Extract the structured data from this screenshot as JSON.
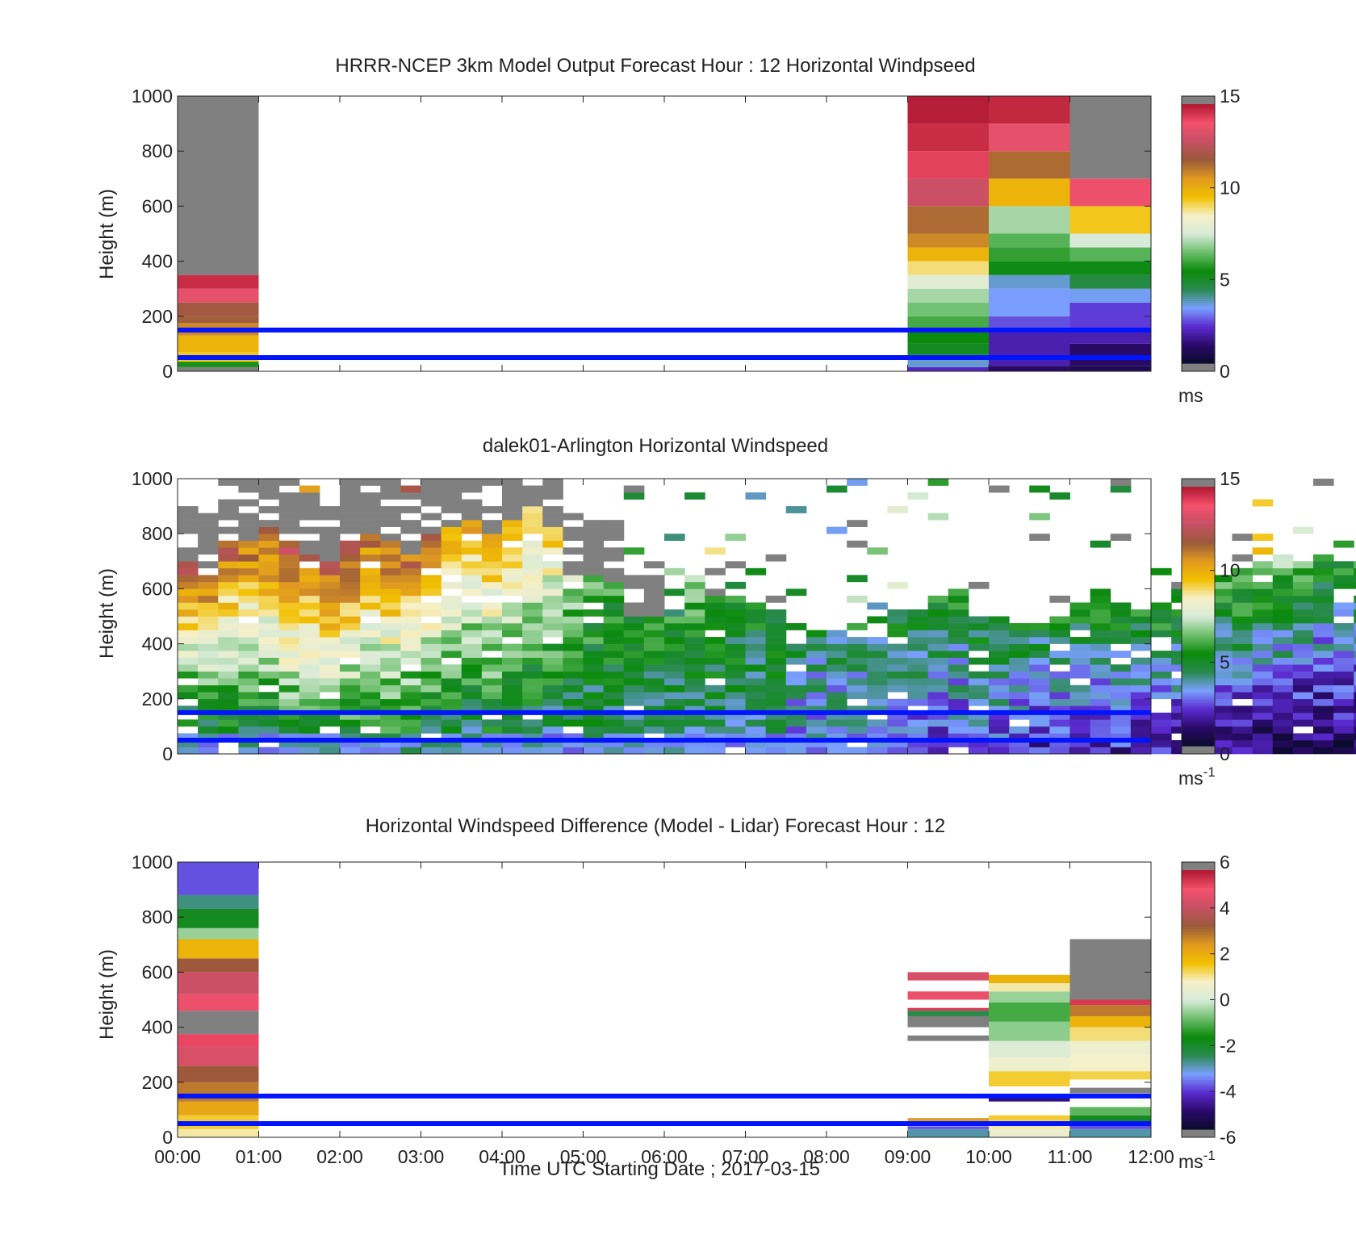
{
  "colors": {
    "background": "#ffffff",
    "axis": "#222222",
    "no_data_gray": "#808080",
    "reference_line": "#0014ff",
    "colormap": [
      "#808080",
      "#0a0a2a",
      "#2a0a6a",
      "#5a2ad0",
      "#7aa0ff",
      "#2a8a50",
      "#0a8a0a",
      "#6cbe6c",
      "#d8ebd8",
      "#f6f0c8",
      "#f2c000",
      "#e09a20",
      "#9a5a3a",
      "#c65064",
      "#f4506c",
      "#b01830",
      "#808080"
    ]
  },
  "chart_data": [
    {
      "type": "heatmap",
      "title": "HRRR-NCEP 3km Model Output   Forecast Hour : 12 Horizontal Windpseed",
      "xlabel": "",
      "ylabel": "Height (m)",
      "xlim": [
        0,
        12
      ],
      "ylim": [
        0,
        1000
      ],
      "yticks": [
        "0",
        "200",
        "400",
        "600",
        "800",
        "1000"
      ],
      "xticks": [
        "",
        "",
        "",
        "",
        "",
        "",
        "",
        "",
        "",
        "",
        "",
        "",
        ""
      ],
      "colorbar": {
        "ticks": [
          "0",
          "5",
          "10",
          "15"
        ],
        "range": [
          0,
          15
        ],
        "unit": "ms",
        "unit_superscript": ""
      },
      "reference_lines_m": [
        50,
        150
      ],
      "columns": [
        {
          "x_start": 0,
          "x_end": 1,
          "cells": [
            {
              "y0": 0,
              "y1": 15,
              "v": null
            },
            {
              "y0": 15,
              "y1": 35,
              "v": 5.5
            },
            {
              "y0": 35,
              "y1": 70,
              "v": 9.5
            },
            {
              "y0": 70,
              "y1": 130,
              "v": 10
            },
            {
              "y0": 130,
              "y1": 175,
              "v": 11
            },
            {
              "y0": 175,
              "y1": 200,
              "v": 11.7
            },
            {
              "y0": 200,
              "y1": 250,
              "v": 12
            },
            {
              "y0": 250,
              "y1": 300,
              "v": 13.6
            },
            {
              "y0": 300,
              "y1": 350,
              "v": 14.6
            },
            {
              "y0": 350,
              "y1": 1000,
              "v": null
            }
          ]
        },
        {
          "x_start": 9,
          "x_end": 10,
          "cells": [
            {
              "y0": 0,
              "y1": 15,
              "v": 2
            },
            {
              "y0": 15,
              "y1": 40,
              "v": 3.5
            },
            {
              "y0": 40,
              "y1": 60,
              "v": 4
            },
            {
              "y0": 60,
              "y1": 100,
              "v": 5
            },
            {
              "y0": 100,
              "y1": 150,
              "v": 5.3
            },
            {
              "y0": 150,
              "y1": 200,
              "v": 6
            },
            {
              "y0": 200,
              "y1": 250,
              "v": 6.5
            },
            {
              "y0": 250,
              "y1": 300,
              "v": 7
            },
            {
              "y0": 300,
              "y1": 350,
              "v": 7.8
            },
            {
              "y0": 350,
              "y1": 400,
              "v": 9
            },
            {
              "y0": 400,
              "y1": 450,
              "v": 10
            },
            {
              "y0": 450,
              "y1": 500,
              "v": 11
            },
            {
              "y0": 500,
              "y1": 600,
              "v": 11.5
            },
            {
              "y0": 600,
              "y1": 700,
              "v": 13
            },
            {
              "y0": 700,
              "y1": 800,
              "v": 14.2
            },
            {
              "y0": 800,
              "y1": 900,
              "v": 14.6
            },
            {
              "y0": 900,
              "y1": 1000,
              "v": 14.9
            }
          ]
        },
        {
          "x_start": 10,
          "x_end": 11,
          "cells": [
            {
              "y0": 0,
              "y1": 20,
              "v": 1
            },
            {
              "y0": 20,
              "y1": 150,
              "v": 1.8
            },
            {
              "y0": 150,
              "y1": 200,
              "v": 2.5
            },
            {
              "y0": 200,
              "y1": 300,
              "v": 3.2
            },
            {
              "y0": 300,
              "y1": 350,
              "v": 3.5
            },
            {
              "y0": 350,
              "y1": 400,
              "v": 5.2
            },
            {
              "y0": 400,
              "y1": 450,
              "v": 5.8
            },
            {
              "y0": 450,
              "y1": 500,
              "v": 6.2
            },
            {
              "y0": 500,
              "y1": 600,
              "v": 7
            },
            {
              "y0": 600,
              "y1": 700,
              "v": 10
            },
            {
              "y0": 700,
              "y1": 800,
              "v": 11.5
            },
            {
              "y0": 800,
              "y1": 900,
              "v": 13.6
            },
            {
              "y0": 900,
              "y1": 1000,
              "v": 14.7
            }
          ]
        },
        {
          "x_start": 11,
          "x_end": 12,
          "cells": [
            {
              "y0": 0,
              "y1": 20,
              "v": 0.7
            },
            {
              "y0": 20,
              "y1": 100,
              "v": 1
            },
            {
              "y0": 100,
              "y1": 150,
              "v": 1.8
            },
            {
              "y0": 150,
              "y1": 250,
              "v": 2.3
            },
            {
              "y0": 250,
              "y1": 300,
              "v": 3.3
            },
            {
              "y0": 300,
              "y1": 350,
              "v": 4.5
            },
            {
              "y0": 350,
              "y1": 400,
              "v": 5.2
            },
            {
              "y0": 400,
              "y1": 450,
              "v": 6.2
            },
            {
              "y0": 450,
              "y1": 500,
              "v": 7.5
            },
            {
              "y0": 500,
              "y1": 600,
              "v": 9.5
            },
            {
              "y0": 600,
              "y1": 700,
              "v": 13.8
            },
            {
              "y0": 700,
              "y1": 1000,
              "v": null
            }
          ]
        }
      ]
    },
    {
      "type": "heatmap",
      "title": "dalek01-Arlington  Horizontal Windspeed",
      "xlabel": "",
      "ylabel": "Height (m)",
      "xlim": [
        0,
        12
      ],
      "ylim": [
        0,
        1000
      ],
      "yticks": [
        "0",
        "200",
        "400",
        "600",
        "800",
        "1000"
      ],
      "xticks": [
        "",
        "",
        "",
        "",
        "",
        "",
        "",
        "",
        "",
        "",
        "",
        "",
        ""
      ],
      "colorbar": {
        "ticks": [
          "0",
          "5",
          "10",
          "15"
        ],
        "range": [
          0,
          15
        ],
        "unit": "ms",
        "unit_superscript": "-1"
      },
      "reference_lines_m": [
        50,
        150
      ],
      "profile_interval_h": 0.25,
      "range_gate_m": 25,
      "lidar_profiles": [
        {
          "top": 700,
          "high": 12.5,
          "low": 4
        },
        {
          "top": 660,
          "high": 12,
          "low": 4
        },
        {
          "top": 790,
          "high": 12.5,
          "low": 4.5
        },
        {
          "top": 790,
          "high": 12,
          "low": 4.5
        },
        {
          "top": 840,
          "high": 12.5,
          "low": 4.5
        },
        {
          "top": 780,
          "high": 13,
          "low": 5
        },
        {
          "top": 740,
          "high": 12,
          "low": 5
        },
        {
          "top": 700,
          "high": 12.5,
          "low": 5
        },
        {
          "top": 780,
          "high": 13,
          "low": 5
        },
        {
          "top": 820,
          "high": 12,
          "low": 5
        },
        {
          "top": 790,
          "high": 12.5,
          "low": 5
        },
        {
          "top": 730,
          "high": 12,
          "low": 4.5
        },
        {
          "top": 820,
          "high": 11.5,
          "low": 4.5
        },
        {
          "top": 830,
          "high": 11,
          "low": 4.5
        },
        {
          "top": 860,
          "high": 11,
          "low": 4
        },
        {
          "top": 820,
          "high": 11,
          "low": 4.5
        },
        {
          "top": 860,
          "high": 10.5,
          "low": 4
        },
        {
          "top": 900,
          "high": 10,
          "low": 4
        },
        {
          "top": 830,
          "high": 9.5,
          "low": 4
        },
        {
          "top": 670,
          "high": 7.5,
          "low": 4
        },
        {
          "top": 650,
          "high": 6.5,
          "low": 4
        },
        {
          "top": 630,
          "high": 6,
          "low": 4
        },
        {
          "top": 520,
          "high": 5.5,
          "low": 4
        },
        {
          "top": 500,
          "high": 5.5,
          "low": 4
        },
        {
          "top": 500,
          "high": 5.5,
          "low": 4
        },
        {
          "top": 660,
          "high": 6.5,
          "low": 4
        },
        {
          "top": 590,
          "high": 6,
          "low": 4
        },
        {
          "top": 580,
          "high": 5.5,
          "low": 4
        },
        {
          "top": 560,
          "high": 5,
          "low": 4
        },
        {
          "top": 540,
          "high": 5,
          "low": 4
        },
        {
          "top": 420,
          "high": 4.5,
          "low": 3
        },
        {
          "top": 470,
          "high": 4.5,
          "low": 3
        },
        {
          "top": 460,
          "high": 4.5,
          "low": 3
        },
        {
          "top": 430,
          "high": 4.5,
          "low": 3
        },
        {
          "top": 440,
          "high": 4.5,
          "low": 3
        },
        {
          "top": 540,
          "high": 5.5,
          "low": 2.5
        },
        {
          "top": 540,
          "high": 5.5,
          "low": 2.5
        },
        {
          "top": 580,
          "high": 5.5,
          "low": 2.5
        },
        {
          "top": 610,
          "high": 5.5,
          "low": 2.5
        },
        {
          "top": 520,
          "high": 5.5,
          "low": 2.5
        },
        {
          "top": 510,
          "high": 5.5,
          "low": 2.5
        },
        {
          "top": 480,
          "high": 5,
          "low": 2.5
        },
        {
          "top": 480,
          "high": 5,
          "low": 2
        },
        {
          "top": 520,
          "high": 5.5,
          "low": 2
        },
        {
          "top": 570,
          "high": 5.5,
          "low": 2
        },
        {
          "top": 600,
          "high": 6,
          "low": 2
        },
        {
          "top": 560,
          "high": 5.5,
          "low": 2
        },
        {
          "top": 530,
          "high": 5.5,
          "low": 2
        },
        {
          "top": 560,
          "high": 6,
          "low": 2
        },
        {
          "top": 620,
          "high": 6,
          "low": 2
        },
        {
          "top": 640,
          "high": 6,
          "low": 1.5
        },
        {
          "top": 650,
          "high": 6.5,
          "low": 1.5
        },
        {
          "top": 690,
          "high": 7,
          "low": 1.5
        },
        {
          "top": 720,
          "high": 7,
          "low": 1
        },
        {
          "top": 700,
          "high": 7,
          "low": 1
        },
        {
          "top": 720,
          "high": 6.5,
          "low": 1
        },
        {
          "top": 740,
          "high": 6,
          "low": 1
        },
        {
          "top": 720,
          "high": 6,
          "low": 1
        },
        {
          "top": 700,
          "high": 6,
          "low": 1
        },
        {
          "top": 730,
          "high": 6,
          "low": 1.5
        },
        {
          "top": 720,
          "high": 5.5,
          "low": 1.5
        },
        {
          "top": 700,
          "high": 5.5,
          "low": 1.5
        },
        {
          "top": 690,
          "high": 5.5,
          "low": 1.5
        },
        {
          "top": 640,
          "high": 5,
          "low": 2
        }
      ],
      "lidar_seed": 20170315
    },
    {
      "type": "heatmap",
      "title": "Horizontal Windspeed Difference (Model - Lidar) Forecast Hour : 12",
      "xlabel": "Time UTC  Starting Date ; 2017-03-15",
      "ylabel": "Height (m)",
      "xlim": [
        0,
        12
      ],
      "ylim": [
        0,
        1000
      ],
      "yticks": [
        "0",
        "200",
        "400",
        "600",
        "800",
        "1000"
      ],
      "xticks": [
        "00:00",
        "01:00",
        "02:00",
        "03:00",
        "04:00",
        "05:00",
        "06:00",
        "07:00",
        "08:00",
        "09:00",
        "10:00",
        "11:00",
        "12:00"
      ],
      "colorbar": {
        "ticks": [
          "-6",
          "-4",
          "-2",
          "0",
          "2",
          "4",
          "6"
        ],
        "range": [
          -6,
          6
        ],
        "unit": "ms",
        "unit_superscript": "-1"
      },
      "reference_lines_m": [
        50,
        150
      ],
      "columns": [
        {
          "x_start": 0,
          "x_end": 1,
          "cells": [
            {
              "y0": 0,
              "y1": 30,
              "v": 1
            },
            {
              "y0": 30,
              "y1": 80,
              "v": 1.5
            },
            {
              "y0": 80,
              "y1": 130,
              "v": 2.3
            },
            {
              "y0": 130,
              "y1": 200,
              "v": 3
            },
            {
              "y0": 200,
              "y1": 260,
              "v": 3.5
            },
            {
              "y0": 260,
              "y1": 330,
              "v": 4.6
            },
            {
              "y0": 330,
              "y1": 375,
              "v": 5.3
            },
            {
              "y0": 375,
              "y1": 460,
              "v": null
            },
            {
              "y0": 460,
              "y1": 520,
              "v": 5
            },
            {
              "y0": 520,
              "y1": 600,
              "v": 4.4
            },
            {
              "y0": 600,
              "y1": 650,
              "v": 3.5
            },
            {
              "y0": 650,
              "y1": 720,
              "v": 2
            },
            {
              "y0": 720,
              "y1": 760,
              "v": -0.5
            },
            {
              "y0": 760,
              "y1": 830,
              "v": -2
            },
            {
              "y0": 830,
              "y1": 880,
              "v": -2.8
            },
            {
              "y0": 880,
              "y1": 1000,
              "v": -4
            }
          ]
        },
        {
          "x_start": 9,
          "x_end": 10,
          "cells": [
            {
              "y0": 0,
              "y1": 30,
              "v": -3
            },
            {
              "y0": 30,
              "y1": 40,
              "v": -4
            },
            {
              "y0": 50,
              "y1": 70,
              "v": 2.5
            },
            {
              "y0": 350,
              "y1": 370,
              "v": null
            },
            {
              "y0": 400,
              "y1": 440,
              "v": null
            },
            {
              "y0": 440,
              "y1": 460,
              "v": -2.5
            },
            {
              "y0": 460,
              "y1": 470,
              "v": 5.5
            },
            {
              "y0": 500,
              "y1": 530,
              "v": 5
            },
            {
              "y0": 570,
              "y1": 600,
              "v": 4.6
            }
          ]
        },
        {
          "x_start": 10,
          "x_end": 11,
          "cells": [
            {
              "y0": 0,
              "y1": 30,
              "v": 0.5
            },
            {
              "y0": 30,
              "y1": 60,
              "v": 1
            },
            {
              "y0": 60,
              "y1": 80,
              "v": 1.5
            },
            {
              "y0": 130,
              "y1": 150,
              "v": -5
            },
            {
              "y0": 185,
              "y1": 240,
              "v": 1.5
            },
            {
              "y0": 240,
              "y1": 290,
              "v": 0.6
            },
            {
              "y0": 290,
              "y1": 350,
              "v": 0.2
            },
            {
              "y0": 350,
              "y1": 420,
              "v": -0.6
            },
            {
              "y0": 420,
              "y1": 490,
              "v": -1.2
            },
            {
              "y0": 490,
              "y1": 530,
              "v": -0.5
            },
            {
              "y0": 530,
              "y1": 560,
              "v": 1
            },
            {
              "y0": 560,
              "y1": 590,
              "v": 2
            }
          ]
        },
        {
          "x_start": 11,
          "x_end": 12,
          "cells": [
            {
              "y0": 0,
              "y1": 30,
              "v": -3
            },
            {
              "y0": 30,
              "y1": 55,
              "v": -4
            },
            {
              "y0": 55,
              "y1": 80,
              "v": -2
            },
            {
              "y0": 80,
              "y1": 110,
              "v": -1
            },
            {
              "y0": 160,
              "y1": 180,
              "v": null
            },
            {
              "y0": 210,
              "y1": 240,
              "v": 1.4
            },
            {
              "y0": 240,
              "y1": 300,
              "v": 0.8
            },
            {
              "y0": 300,
              "y1": 350,
              "v": 0.6
            },
            {
              "y0": 350,
              "y1": 400,
              "v": 1.2
            },
            {
              "y0": 400,
              "y1": 440,
              "v": 2
            },
            {
              "y0": 440,
              "y1": 480,
              "v": 3
            },
            {
              "y0": 480,
              "y1": 500,
              "v": 5.5
            },
            {
              "y0": 500,
              "y1": 720,
              "v": null
            }
          ]
        }
      ]
    }
  ]
}
